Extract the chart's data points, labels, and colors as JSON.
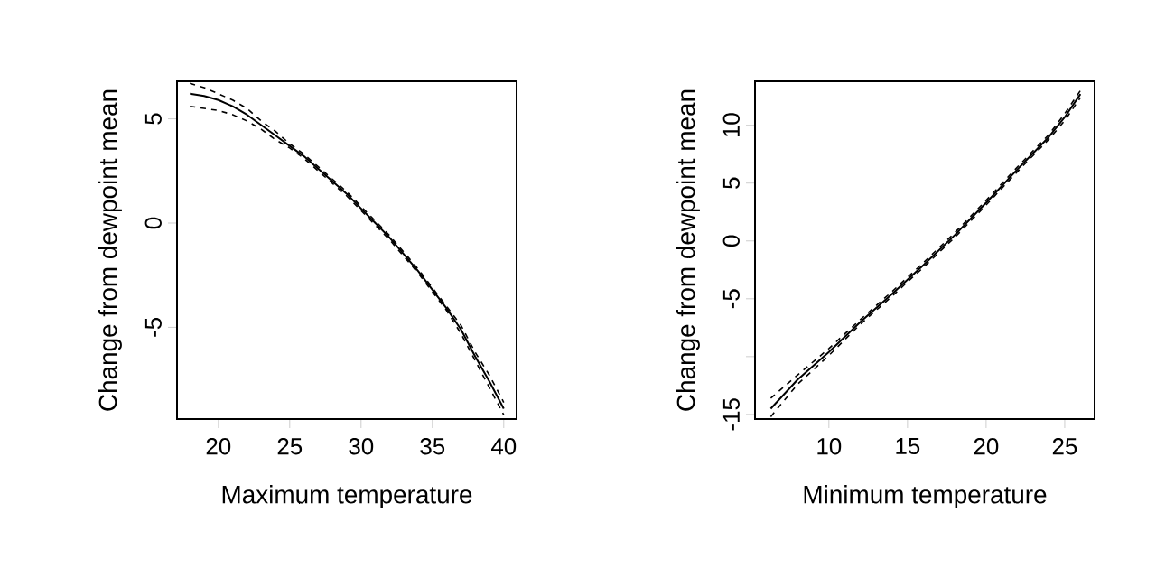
{
  "chart_data": [
    {
      "type": "line",
      "xlabel": "Maximum temperature",
      "ylabel": "Change from dewpoint mean",
      "xlim": [
        17.1,
        40.9
      ],
      "ylim": [
        -9.4,
        6.8
      ],
      "xticks": [
        20,
        25,
        30,
        35,
        40
      ],
      "yticks": [
        -5,
        0,
        5
      ],
      "x": [
        18,
        19,
        20,
        21,
        22,
        23,
        24,
        25,
        26,
        27,
        28,
        29,
        30,
        31,
        32,
        33,
        34,
        35,
        36,
        37,
        38,
        39,
        40
      ],
      "series": [
        {
          "color": "#000000",
          "line_style": "solid",
          "values": [
            6.2,
            6.1,
            5.9,
            5.6,
            5.2,
            4.7,
            4.2,
            3.7,
            3.2,
            2.6,
            2.0,
            1.4,
            0.7,
            0.0,
            -0.7,
            -1.5,
            -2.3,
            -3.2,
            -4.1,
            -5.1,
            -6.4,
            -7.6,
            -8.9
          ]
        },
        {
          "color": "#000000",
          "line_style": "dashed",
          "values": [
            5.6,
            5.5,
            5.4,
            5.2,
            4.9,
            4.5,
            4.0,
            3.6,
            3.1,
            2.5,
            1.9,
            1.3,
            0.6,
            -0.1,
            -0.8,
            -1.6,
            -2.4,
            -3.3,
            -4.2,
            -5.3,
            -6.6,
            -7.9,
            -9.2
          ]
        },
        {
          "color": "#000000",
          "line_style": "dashed",
          "values": [
            6.7,
            6.5,
            6.2,
            5.9,
            5.5,
            4.9,
            4.4,
            3.8,
            3.3,
            2.7,
            2.1,
            1.5,
            0.8,
            0.1,
            -0.6,
            -1.4,
            -2.2,
            -3.1,
            -4.0,
            -4.9,
            -6.2,
            -7.3,
            -8.6
          ]
        }
      ]
    },
    {
      "type": "line",
      "xlabel": "Minimum temperature",
      "ylabel": "Change from dewpoint mean",
      "xlim": [
        5.3,
        26.9
      ],
      "ylim": [
        -15.4,
        13.8
      ],
      "xticks": [
        10,
        15,
        20,
        25
      ],
      "yticks": [
        -15,
        {
          "value": -10,
          "label": null
        },
        -5,
        0,
        5,
        10
      ],
      "x": [
        6.3,
        8,
        10,
        12,
        14,
        16,
        18,
        20,
        22,
        24,
        25,
        26
      ],
      "series": [
        {
          "color": "#000000",
          "line_style": "solid",
          "values": [
            -14.5,
            -12.0,
            -9.6,
            -7.0,
            -4.6,
            -2.1,
            0.5,
            3.3,
            6.2,
            9.0,
            10.7,
            12.7
          ]
        },
        {
          "color": "#000000",
          "line_style": "dashed",
          "values": [
            -15.2,
            -12.4,
            -9.9,
            -7.2,
            -4.8,
            -2.3,
            0.3,
            3.1,
            6.0,
            8.8,
            10.4,
            12.4
          ]
        },
        {
          "color": "#000000",
          "line_style": "dashed",
          "values": [
            -13.6,
            -11.6,
            -9.3,
            -6.8,
            -4.4,
            -1.9,
            0.7,
            3.5,
            6.4,
            9.2,
            11.0,
            13.0
          ]
        }
      ]
    }
  ]
}
